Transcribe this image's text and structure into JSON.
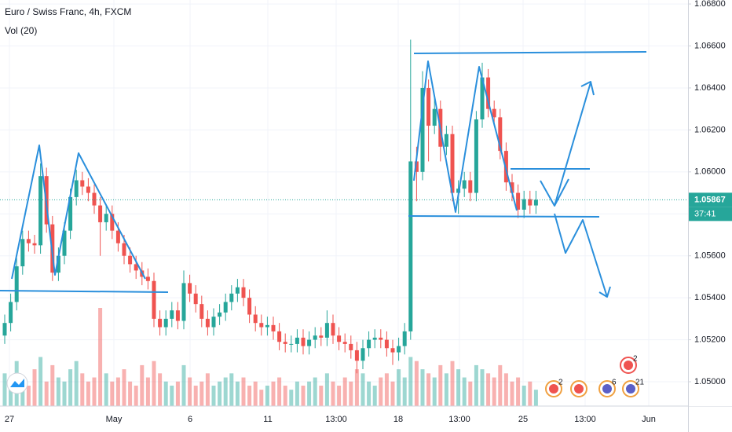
{
  "chart_data": {
    "type": "candlestick",
    "title": "Euro / Swiss Franc, 4h, FXCM",
    "subtitle": "Vol (20)",
    "countdown": "37:41",
    "event_counts": [
      "2",
      "6",
      "21",
      "2"
    ],
    "xtick_labels": [
      "27",
      "May",
      "6",
      "11",
      "13:00",
      "18",
      "13:00",
      "25",
      "13:00",
      "Jun"
    ],
    "up_color": "#26a69a",
    "down_color": "#ef5350",
    "grid": true,
    "ylim": [
      1.04884,
      1.06819
    ],
    "yticks": [
      {
        "value": 1.05,
        "label": "1.05000"
      },
      {
        "value": 1.052,
        "label": "1.05200"
      },
      {
        "value": 1.054,
        "label": "1.05400"
      },
      {
        "value": 1.056,
        "label": "1.05600"
      },
      {
        "value": 1.058,
        "label": "1.05800"
      },
      {
        "value": 1.06,
        "label": "1.06000"
      },
      {
        "value": 1.062,
        "label": "1.06200"
      },
      {
        "value": 1.064,
        "label": "1.06400"
      },
      {
        "value": 1.066,
        "label": "1.06600"
      },
      {
        "value": 1.068,
        "label": "1.06800"
      }
    ],
    "open": [
      1.0522,
      1.0528,
      1.0538,
      1.0555,
      1.0568,
      1.0566,
      1.0565,
      1.0598,
      1.0575,
      1.0552,
      1.056,
      1.0572,
      1.0588,
      1.0596,
      1.0593,
      1.059,
      1.0584,
      1.0576,
      1.058,
      1.0572,
      1.0566,
      1.056,
      1.0556,
      1.0553,
      1.055,
      1.0548,
      1.053,
      1.0526,
      1.053,
      1.0534,
      1.0529,
      1.0547,
      1.0542,
      1.0537,
      1.053,
      1.0526,
      1.0531,
      1.0533,
      1.0538,
      1.0542,
      1.0545,
      1.054,
      1.0532,
      1.0528,
      1.0526,
      1.0527,
      1.0524,
      1.0519,
      1.0518,
      1.0518,
      1.0521,
      1.0517,
      1.052,
      1.0522,
      1.0521,
      1.0528,
      1.0522,
      1.0519,
      1.0518,
      1.0515,
      1.051,
      1.0516,
      1.052,
      1.0521,
      1.052,
      1.0516,
      1.0514,
      1.0517,
      1.0524,
      1.0605,
      1.06,
      1.064,
      1.0622,
      1.063,
      1.0612,
      1.0618,
      1.059,
      1.0592,
      1.0596,
      1.059,
      1.0625,
      1.0645,
      1.063,
      1.0626,
      1.061,
      1.0595,
      1.059,
      1.0582,
      1.0587,
      1.0584
    ],
    "high": [
      1.0532,
      1.0542,
      1.0559,
      1.0572,
      1.0572,
      1.057,
      1.0604,
      1.0602,
      1.0579,
      1.0564,
      1.0576,
      1.0592,
      1.0601,
      1.06,
      1.0597,
      1.0594,
      1.0588,
      1.0584,
      1.0584,
      1.0576,
      1.057,
      1.0564,
      1.056,
      1.0557,
      1.0554,
      1.0552,
      1.0534,
      1.0534,
      1.0538,
      1.0538,
      1.0553,
      1.0551,
      1.0546,
      1.0541,
      1.0534,
      1.0535,
      1.0537,
      1.0542,
      1.0546,
      1.0549,
      1.0549,
      1.0544,
      1.0536,
      1.0532,
      1.0531,
      1.0531,
      1.0528,
      1.0523,
      1.0522,
      1.0525,
      1.0525,
      1.0524,
      1.0526,
      1.0526,
      1.0534,
      1.0532,
      1.0526,
      1.0523,
      1.0522,
      1.0519,
      1.052,
      1.0524,
      1.0525,
      1.0525,
      1.0524,
      1.052,
      1.0521,
      1.0528,
      1.0663,
      1.0612,
      1.0648,
      1.0644,
      1.0636,
      1.0634,
      1.0622,
      1.0622,
      1.0596,
      1.06,
      1.06,
      1.0629,
      1.0652,
      1.0649,
      1.0634,
      1.063,
      1.0614,
      1.0599,
      1.0594,
      1.0591,
      1.0591,
      1.0591
    ],
    "low": [
      1.0518,
      1.0524,
      1.0534,
      1.0551,
      1.0562,
      1.0561,
      1.0561,
      1.0571,
      1.0548,
      1.0548,
      1.0556,
      1.0568,
      1.0584,
      1.0589,
      1.0586,
      1.058,
      1.056,
      1.0572,
      1.0568,
      1.0562,
      1.0556,
      1.0552,
      1.0549,
      1.0546,
      1.0544,
      1.0526,
      1.0522,
      1.0522,
      1.0526,
      1.0525,
      1.0525,
      1.0538,
      1.0533,
      1.0526,
      1.0522,
      1.0522,
      1.0527,
      1.0529,
      1.0534,
      1.0538,
      1.0536,
      1.0528,
      1.0524,
      1.0522,
      1.0522,
      1.052,
      1.0515,
      1.0514,
      1.0514,
      1.0514,
      1.0513,
      1.0513,
      1.0516,
      1.0517,
      1.0517,
      1.0518,
      1.0515,
      1.0514,
      1.0511,
      1.0504,
      1.0506,
      1.0512,
      1.0516,
      1.0516,
      1.0512,
      1.0508,
      1.051,
      1.0513,
      1.052,
      1.0586,
      1.0596,
      1.0605,
      1.0618,
      1.0605,
      1.0608,
      1.0586,
      1.058,
      1.0588,
      1.0586,
      1.0586,
      1.0621,
      1.0626,
      1.0622,
      1.0606,
      1.0591,
      1.0586,
      1.0578,
      1.0578,
      1.058,
      1.058
    ],
    "close": [
      1.0528,
      1.0538,
      1.0555,
      1.0568,
      1.0566,
      1.0565,
      1.0598,
      1.0575,
      1.0552,
      1.056,
      1.0572,
      1.0588,
      1.0596,
      1.0593,
      1.059,
      1.0584,
      1.0576,
      1.058,
      1.0572,
      1.0566,
      1.056,
      1.0556,
      1.0553,
      1.055,
      1.0548,
      1.053,
      1.0526,
      1.053,
      1.0534,
      1.0529,
      1.0547,
      1.0542,
      1.0537,
      1.053,
      1.0526,
      1.0531,
      1.0533,
      1.0538,
      1.0542,
      1.0545,
      1.054,
      1.0532,
      1.0528,
      1.0526,
      1.0527,
      1.0524,
      1.0519,
      1.0518,
      1.0518,
      1.0521,
      1.0517,
      1.052,
      1.0522,
      1.0521,
      1.0528,
      1.0522,
      1.0519,
      1.0518,
      1.0515,
      1.051,
      1.0516,
      1.052,
      1.0521,
      1.052,
      1.0516,
      1.0514,
      1.0517,
      1.0524,
      1.0605,
      1.06,
      1.064,
      1.0622,
      1.063,
      1.0612,
      1.0618,
      1.059,
      1.0592,
      1.0596,
      1.059,
      1.0625,
      1.0645,
      1.063,
      1.0626,
      1.061,
      1.0595,
      1.059,
      1.0582,
      1.0587,
      1.0584,
      1.05867
    ],
    "volume": [
      40,
      30,
      55,
      35,
      25,
      45,
      60,
      30,
      50,
      35,
      30,
      45,
      55,
      40,
      30,
      35,
      120,
      40,
      30,
      35,
      45,
      30,
      25,
      50,
      35,
      55,
      40,
      30,
      25,
      30,
      50,
      35,
      25,
      30,
      40,
      25,
      30,
      35,
      40,
      30,
      35,
      25,
      30,
      20,
      25,
      30,
      35,
      25,
      20,
      30,
      25,
      30,
      35,
      25,
      40,
      30,
      25,
      35,
      30,
      45,
      40,
      30,
      25,
      35,
      40,
      30,
      45,
      35,
      60,
      55,
      45,
      40,
      35,
      50,
      40,
      55,
      45,
      35,
      30,
      50,
      45,
      40,
      35,
      50,
      40,
      30,
      35,
      25,
      30,
      20
    ]
  }
}
